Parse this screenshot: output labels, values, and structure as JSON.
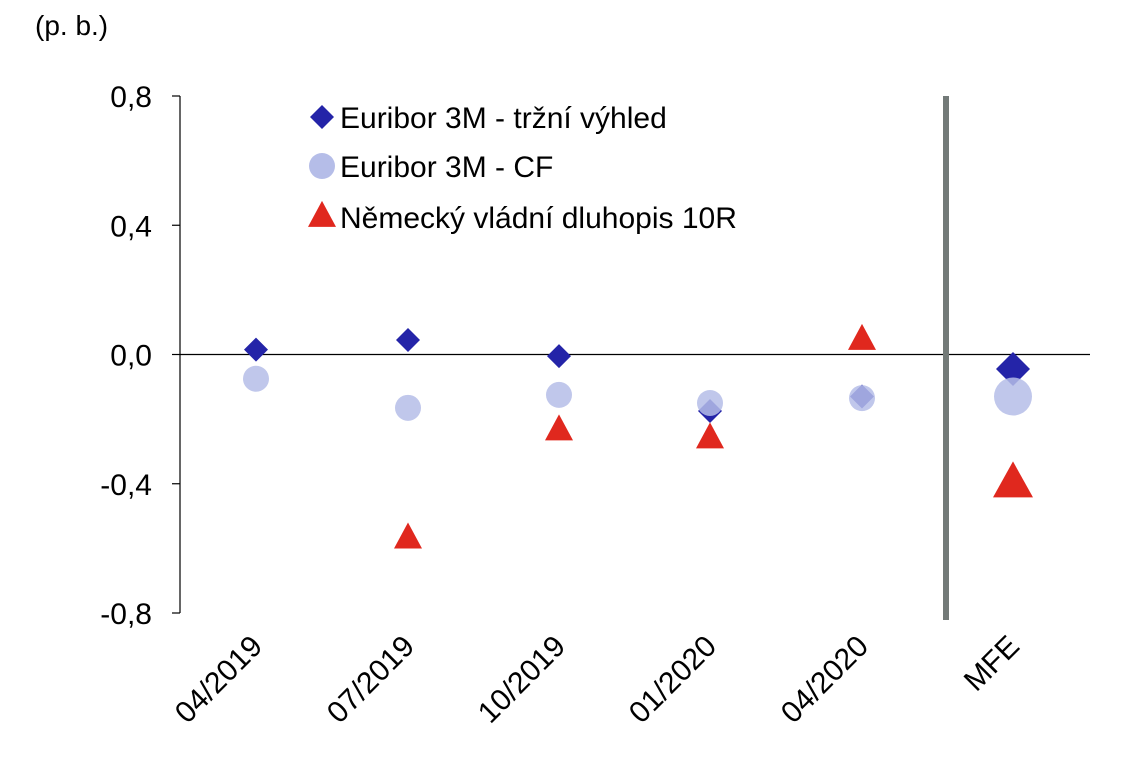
{
  "chart_data": {
    "type": "scatter",
    "unit_label": "(p. b.)",
    "categories": [
      "04/2019",
      "07/2019",
      "10/2019",
      "01/2020",
      "04/2020",
      "MFE"
    ],
    "ylim": [
      -0.8,
      0.8
    ],
    "yticks": [
      0.8,
      0.4,
      0.0,
      -0.4,
      -0.8
    ],
    "ytick_labels": [
      "0,8",
      "0,4",
      "0,0",
      "-0,4",
      "-0,8"
    ],
    "separator_before": "MFE",
    "legend_position": "top-left",
    "series": [
      {
        "name": "Euribor 3M - tržní výhled",
        "marker": "diamond",
        "color": "#2424a8",
        "values": [
          0.015,
          0.045,
          -0.005,
          -0.175,
          -0.13,
          -0.045
        ]
      },
      {
        "name": "Euribor 3M - CF",
        "marker": "circle",
        "color": "#b5bde8",
        "values": [
          -0.075,
          -0.165,
          -0.125,
          -0.15,
          -0.135,
          -0.13
        ]
      },
      {
        "name": "Německý vládní dluhopis 10R",
        "marker": "triangle",
        "color": "#e0281e",
        "values": [
          null,
          -0.57,
          -0.235,
          -0.26,
          0.045,
          -0.4
        ]
      }
    ]
  }
}
